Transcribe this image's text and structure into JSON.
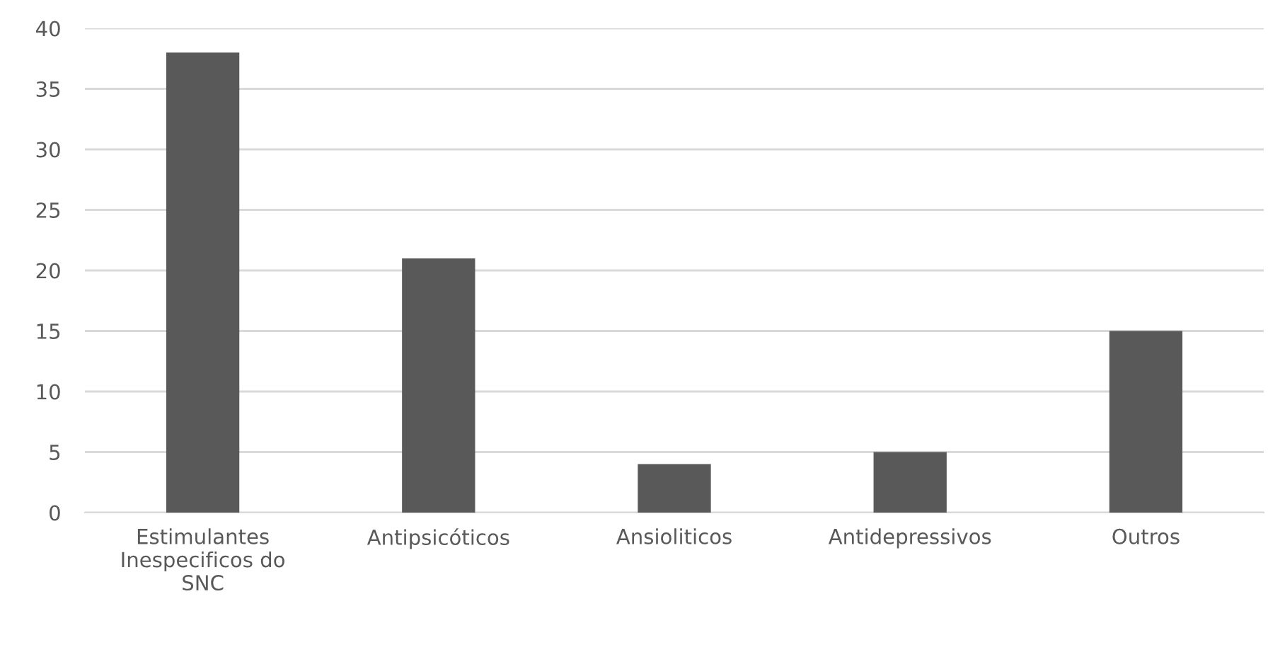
{
  "chart_data": {
    "type": "bar",
    "categories": [
      "Estimulantes\nInespecificos do\nSNC",
      "Antipsicóticos",
      "Ansioliticos",
      "Antidepressivos",
      "Outros"
    ],
    "values": [
      38,
      21,
      4,
      5,
      15
    ],
    "color": "#595959",
    "ylim": [
      0,
      40
    ],
    "yticks": [
      0,
      5,
      10,
      15,
      20,
      25,
      30,
      35,
      40
    ],
    "grid": "y"
  }
}
